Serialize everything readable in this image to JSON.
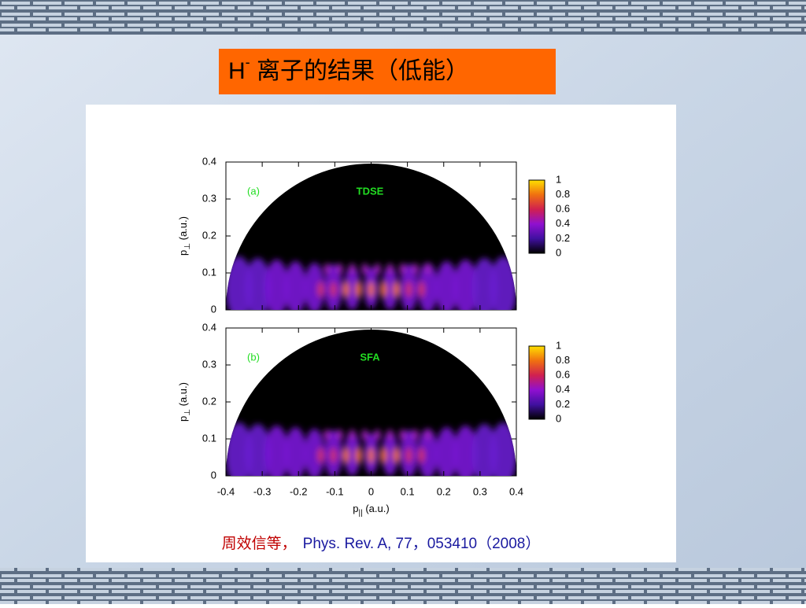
{
  "title": {
    "main": "H",
    "sup": "-",
    "rest": " 离子的结果（低能）"
  },
  "figure": {
    "panels": [
      {
        "label": "(a)",
        "method": "TDSE"
      },
      {
        "label": "(b)",
        "method": "SFA"
      }
    ],
    "y_ticks": [
      "0",
      "0.1",
      "0.2",
      "0.3",
      "0.4"
    ],
    "x_ticks": [
      "-0.4",
      "-0.3",
      "-0.2",
      "-0.1",
      "0",
      "0.1",
      "0.2",
      "0.3",
      "0.4"
    ],
    "colorbar_ticks": [
      "0",
      "0.2",
      "0.4",
      "0.6",
      "0.8",
      "1"
    ],
    "y_label": {
      "symbol": "p",
      "sub": "⊥",
      "unit": " (a.u.)"
    },
    "x_label": {
      "symbol": "p",
      "sub": "||",
      "unit": " (a.u.)"
    }
  },
  "citation": {
    "authors": "周效信等，",
    "reference": "Phys. Rev. A, 77，053410（2008）"
  }
}
